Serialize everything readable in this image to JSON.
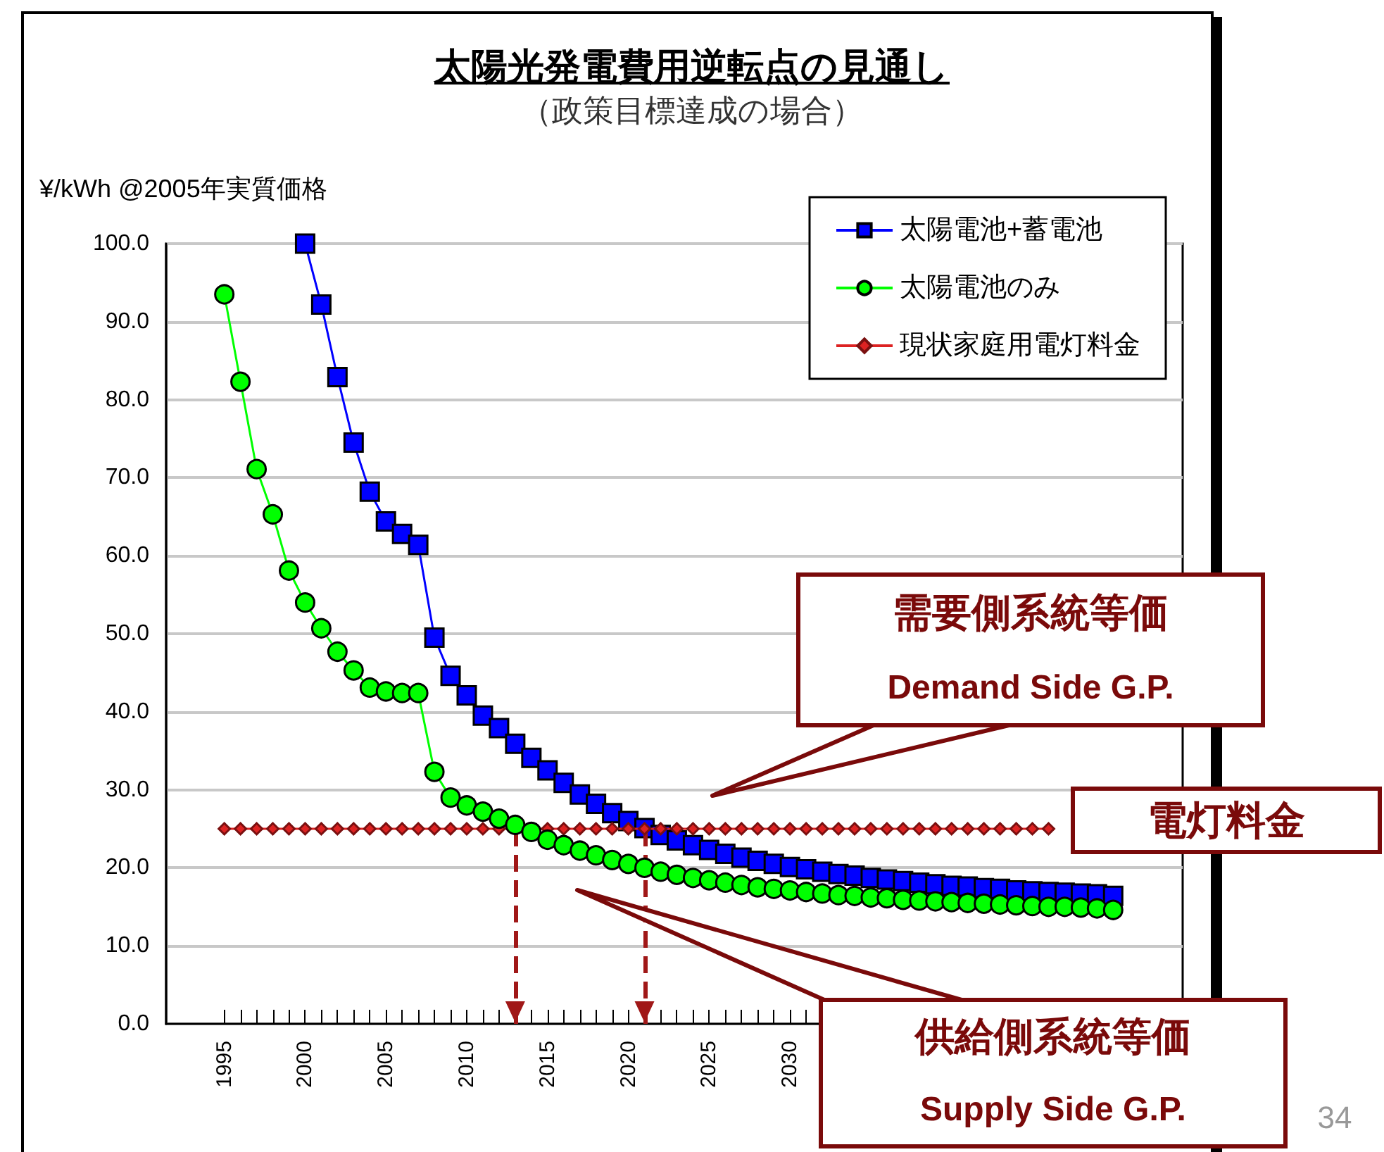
{
  "chart_data": {
    "type": "line",
    "title": "太陽光発電費用逆転点の見通し",
    "subtitle": "（政策目標達成の場合）",
    "ylabel": "¥/kWh @2005年実質価格",
    "x": [
      1995,
      1996,
      1997,
      1998,
      1999,
      2000,
      2001,
      2002,
      2003,
      2004,
      2005,
      2006,
      2007,
      2008,
      2009,
      2010,
      2011,
      2012,
      2013,
      2014,
      2015,
      2016,
      2017,
      2018,
      2019,
      2020,
      2021,
      2022,
      2023,
      2024,
      2025,
      2026,
      2027,
      2028,
      2029,
      2030,
      2031,
      2032,
      2033,
      2034,
      2035,
      2036,
      2037,
      2038,
      2039,
      2040,
      2041,
      2042,
      2043,
      2044,
      2045,
      2046,
      2047,
      2048,
      2049,
      2050
    ],
    "series": [
      {
        "name": "太陽電池+蓄電池",
        "color": "#0000ff",
        "marker": "square",
        "values": [
          null,
          null,
          null,
          null,
          null,
          100,
          92.2,
          82.9,
          74.5,
          68.2,
          64.4,
          62.8,
          61.4,
          49.5,
          44.6,
          42.1,
          39.5,
          37.9,
          35.9,
          34.1,
          32.5,
          30.9,
          29.4,
          28.2,
          27.0,
          26.0,
          25.1,
          24.2,
          23.5,
          22.9,
          22.3,
          21.8,
          21.3,
          20.9,
          20.5,
          20.1,
          19.8,
          19.5,
          19.2,
          19.0,
          18.7,
          18.5,
          18.3,
          18.1,
          17.9,
          17.7,
          17.6,
          17.4,
          17.3,
          17.1,
          17.0,
          16.9,
          16.8,
          16.7,
          16.6,
          16.4
        ]
      },
      {
        "name": "太陽電池のみ",
        "color": "#00ff00",
        "marker": "circle",
        "values": [
          93.5,
          82.3,
          71.1,
          65.3,
          58.1,
          54.0,
          50.7,
          47.7,
          45.3,
          43.1,
          42.6,
          42.4,
          42.4,
          32.3,
          29.0,
          28.0,
          27.2,
          26.3,
          25.5,
          24.6,
          23.6,
          22.9,
          22.2,
          21.6,
          21.0,
          20.5,
          20.0,
          19.5,
          19.1,
          18.7,
          18.4,
          18.1,
          17.8,
          17.5,
          17.3,
          17.1,
          16.9,
          16.7,
          16.5,
          16.4,
          16.2,
          16.1,
          15.9,
          15.8,
          15.7,
          15.6,
          15.5,
          15.4,
          15.3,
          15.2,
          15.1,
          15.0,
          15.0,
          14.9,
          14.8,
          14.6
        ]
      },
      {
        "name": "現状家庭用電灯料金",
        "color": "#dd2222",
        "marker": "diamond",
        "values": [
          25,
          25,
          25,
          25,
          25,
          25,
          25,
          25,
          25,
          25,
          25,
          25,
          25,
          25,
          25,
          25,
          25,
          25,
          25,
          25,
          25,
          25,
          25,
          25,
          25,
          25,
          25,
          25,
          25,
          25,
          25,
          25,
          25,
          25,
          25,
          25,
          25,
          25,
          25,
          25,
          25,
          25,
          25,
          25,
          25,
          25,
          25,
          25,
          25,
          25,
          25,
          25,
          null,
          null,
          null,
          null
        ]
      }
    ],
    "xlim": [
      1991.4,
      2054.3
    ],
    "xticks": [
      {
        "value": 1995,
        "label": "1995"
      },
      {
        "value": 1996,
        "label": null
      },
      {
        "value": 1997,
        "label": null
      },
      {
        "value": 1998,
        "label": null
      },
      {
        "value": 1999,
        "label": null
      },
      {
        "value": 2000,
        "label": "2000"
      },
      {
        "value": 2001,
        "label": null
      },
      {
        "value": 2002,
        "label": null
      },
      {
        "value": 2003,
        "label": null
      },
      {
        "value": 2004,
        "label": null
      },
      {
        "value": 2005,
        "label": "2005"
      },
      {
        "value": 2006,
        "label": null
      },
      {
        "value": 2007,
        "label": null
      },
      {
        "value": 2008,
        "label": null
      },
      {
        "value": 2009,
        "label": null
      },
      {
        "value": 2010,
        "label": "2010"
      },
      {
        "value": 2011,
        "label": null
      },
      {
        "value": 2012,
        "label": null
      },
      {
        "value": 2013,
        "label": null
      },
      {
        "value": 2014,
        "label": null
      },
      {
        "value": 2015,
        "label": "2015"
      },
      {
        "value": 2016,
        "label": null
      },
      {
        "value": 2017,
        "label": null
      },
      {
        "value": 2018,
        "label": null
      },
      {
        "value": 2019,
        "label": null
      },
      {
        "value": 2020,
        "label": "2020"
      },
      {
        "value": 2021,
        "label": null
      },
      {
        "value": 2022,
        "label": null
      },
      {
        "value": 2023,
        "label": null
      },
      {
        "value": 2024,
        "label": null
      },
      {
        "value": 2025,
        "label": "2025"
      },
      {
        "value": 2026,
        "label": null
      },
      {
        "value": 2027,
        "label": null
      },
      {
        "value": 2028,
        "label": null
      },
      {
        "value": 2029,
        "label": null
      },
      {
        "value": 2030,
        "label": "2030"
      },
      {
        "value": 2031,
        "label": null
      },
      {
        "value": 2032,
        "label": null
      },
      {
        "value": 2033,
        "label": null
      },
      {
        "value": 2034,
        "label": null
      },
      {
        "value": 2035,
        "label": null
      },
      {
        "value": 2036,
        "label": null
      },
      {
        "value": 2037,
        "label": null
      },
      {
        "value": 2038,
        "label": null
      },
      {
        "value": 2039,
        "label": null
      },
      {
        "value": 2040,
        "label": null
      },
      {
        "value": 2041,
        "label": null
      },
      {
        "value": 2042,
        "label": null
      },
      {
        "value": 2043,
        "label": null
      },
      {
        "value": 2044,
        "label": null
      },
      {
        "value": 2045,
        "label": null
      },
      {
        "value": 2046,
        "label": null
      },
      {
        "value": 2047,
        "label": null
      },
      {
        "value": 2048,
        "label": null
      },
      {
        "value": 2049,
        "label": null
      },
      {
        "value": 2050,
        "label": null
      },
      {
        "value": 2051,
        "label": null
      },
      {
        "value": 2052,
        "label": null
      },
      {
        "value": 2053,
        "label": null
      },
      {
        "value": 2054,
        "label": null
      }
    ],
    "ylim": [
      0,
      100
    ],
    "yticks": [
      {
        "value": 0,
        "label": "0.0"
      },
      {
        "value": 10,
        "label": "10.0"
      },
      {
        "value": 20,
        "label": "20.0"
      },
      {
        "value": 30,
        "label": "30.0"
      },
      {
        "value": 40,
        "label": "40.0"
      },
      {
        "value": 50,
        "label": "50.0"
      },
      {
        "value": 60,
        "label": "60.0"
      },
      {
        "value": 70,
        "label": "70.0"
      },
      {
        "value": 80,
        "label": "80.0"
      },
      {
        "value": 90,
        "label": "90.0"
      },
      {
        "value": 100,
        "label": "100.0"
      }
    ],
    "grid": "y",
    "legend": "top right",
    "tick_labels": true,
    "ref_lines": [
      {
        "axis": "x",
        "value": 2013,
        "color": "#a01818",
        "line_style": "dashed"
      },
      {
        "axis": "x",
        "value": 2021,
        "color": "#a01818",
        "line_style": "dashed"
      }
    ],
    "annotations": [
      "需要側系統等価\nDemand Side G.P.",
      "供給側系統等価\nSupply Side G.P.",
      "電灯料金",
      "34"
    ]
  }
}
